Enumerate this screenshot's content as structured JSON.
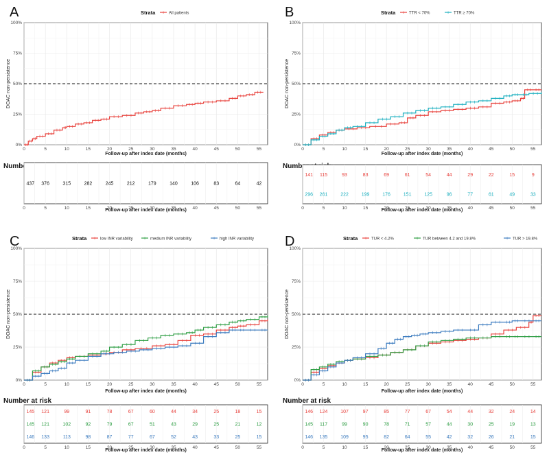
{
  "xlabel": "Follow-up after index date (months)",
  "ylabel": "DOAC non-persistence",
  "risk_title": "Number at risk",
  "legend_title": "Strata",
  "x_ticks": [
    "0",
    "5",
    "10",
    "15",
    "20",
    "25",
    "30",
    "35",
    "40",
    "45",
    "50",
    "55"
  ],
  "y_ticks": [
    "0%",
    "25%",
    "50%",
    "75%",
    "100%"
  ],
  "chart_data": [
    {
      "panel": "A",
      "type": "line",
      "title": "",
      "xlabel": "Follow-up after index date (months)",
      "ylabel": "DOAC non-persistence",
      "xlim": [
        0,
        57
      ],
      "ylim": [
        0,
        100
      ],
      "reference_line": 50,
      "series": [
        {
          "name": "All patients",
          "color": "#e8403b",
          "x": [
            0,
            1,
            2,
            3,
            5,
            7,
            9,
            10,
            12,
            14,
            16,
            18,
            20,
            23,
            26,
            28,
            30,
            32,
            35,
            38,
            40,
            42,
            45,
            48,
            50,
            52,
            54,
            56
          ],
          "y": [
            0,
            3,
            5,
            7,
            9,
            12,
            14,
            15,
            17,
            18,
            20,
            21,
            23,
            24,
            26,
            27,
            28,
            30,
            32,
            33,
            34,
            35,
            36,
            38,
            40,
            41,
            43,
            43
          ]
        }
      ],
      "risk_table": {
        "time_points": [
          0,
          5,
          10,
          15,
          20,
          25,
          30,
          35,
          40,
          45,
          50,
          55
        ],
        "rows": [
          {
            "label": "All patients",
            "color": "#111111",
            "values": [
              "437",
              "376",
              "315",
              "282",
              "245",
              "212",
              "179",
              "140",
              "106",
              "83",
              "64",
              "42"
            ]
          }
        ]
      }
    },
    {
      "panel": "B",
      "type": "line",
      "title": "",
      "xlabel": "Follow-up after index date (months)",
      "ylabel": "DOAC non-persistence",
      "xlim": [
        0,
        57
      ],
      "ylim": [
        0,
        100
      ],
      "reference_line": 50,
      "series": [
        {
          "name": "TTR < 70%",
          "color": "#e8403b",
          "x": [
            0,
            2,
            4,
            6,
            8,
            10,
            13,
            16,
            20,
            23,
            25,
            27,
            30,
            33,
            36,
            39,
            42,
            45,
            48,
            50,
            52,
            53,
            55,
            57
          ],
          "y": [
            0,
            5,
            8,
            10,
            12,
            13,
            14,
            15,
            17,
            18,
            22,
            24,
            27,
            28,
            29,
            30,
            31,
            34,
            35,
            36,
            38,
            45,
            45,
            45
          ]
        },
        {
          "name": "TTR ≥ 70%",
          "color": "#1aafbf",
          "x": [
            0,
            2,
            4,
            6,
            8,
            10,
            12,
            15,
            18,
            21,
            24,
            27,
            30,
            33,
            36,
            39,
            42,
            45,
            48,
            50,
            52,
            54,
            57
          ],
          "y": [
            0,
            4,
            7,
            9,
            12,
            14,
            15,
            18,
            21,
            23,
            26,
            28,
            30,
            31,
            33,
            35,
            36,
            38,
            40,
            41,
            41,
            42,
            43
          ]
        }
      ],
      "risk_table": {
        "time_points": [
          0,
          5,
          10,
          15,
          20,
          25,
          30,
          35,
          40,
          45,
          50,
          55
        ],
        "rows": [
          {
            "label": "TTR < 70%",
            "color": "#e8403b",
            "values": [
              "141",
              "115",
              "93",
              "83",
              "69",
              "61",
              "54",
              "44",
              "29",
              "22",
              "15",
              "9"
            ]
          },
          {
            "label": "TTR ≥ 70%",
            "color": "#1aafbf",
            "values": [
              "296",
              "261",
              "222",
              "199",
              "176",
              "151",
              "125",
              "96",
              "77",
              "61",
              "49",
              "33"
            ]
          }
        ]
      }
    },
    {
      "panel": "C",
      "type": "line",
      "title": "",
      "xlabel": "Follow-up after index date (months)",
      "ylabel": "DOAC non-persistence",
      "xlim": [
        0,
        57
      ],
      "ylim": [
        0,
        100
      ],
      "reference_line": 50,
      "series": [
        {
          "name": "low INR variability",
          "color": "#e8403b",
          "x": [
            0,
            2,
            4,
            6,
            8,
            10,
            12,
            15,
            18,
            20,
            23,
            26,
            30,
            33,
            36,
            39,
            42,
            45,
            48,
            50,
            52,
            55,
            57
          ],
          "y": [
            0,
            6,
            10,
            13,
            15,
            17,
            18,
            19,
            20,
            21,
            23,
            24,
            26,
            27,
            30,
            34,
            35,
            38,
            40,
            41,
            42,
            45,
            46
          ]
        },
        {
          "name": "medium INR variability",
          "color": "#2e9e44",
          "x": [
            0,
            2,
            4,
            6,
            8,
            10,
            12,
            15,
            18,
            20,
            23,
            26,
            29,
            32,
            35,
            38,
            40,
            42,
            45,
            48,
            50,
            52,
            55,
            57
          ],
          "y": [
            0,
            7,
            10,
            12,
            14,
            16,
            18,
            20,
            22,
            25,
            27,
            30,
            32,
            34,
            35,
            36,
            38,
            40,
            42,
            44,
            45,
            46,
            48,
            49
          ]
        },
        {
          "name": "high INR variability",
          "color": "#3b7bbf",
          "x": [
            0,
            2,
            4,
            6,
            8,
            10,
            12,
            15,
            18,
            21,
            24,
            27,
            30,
            33,
            36,
            39,
            42,
            45,
            48,
            50,
            52,
            55,
            57
          ],
          "y": [
            0,
            3,
            5,
            7,
            9,
            13,
            15,
            18,
            20,
            21,
            22,
            23,
            24,
            25,
            26,
            28,
            33,
            36,
            38,
            38,
            38,
            38,
            38
          ]
        }
      ],
      "risk_table": {
        "time_points": [
          0,
          5,
          10,
          15,
          20,
          25,
          30,
          35,
          40,
          45,
          50,
          55
        ],
        "rows": [
          {
            "label": "low INR variability",
            "color": "#e8403b",
            "values": [
              "145",
              "121",
              "99",
              "91",
              "78",
              "67",
              "60",
              "44",
              "34",
              "25",
              "18",
              "15"
            ]
          },
          {
            "label": "medium INR variability",
            "color": "#2e9e44",
            "values": [
              "145",
              "121",
              "102",
              "92",
              "79",
              "67",
              "51",
              "43",
              "29",
              "25",
              "21",
              "12"
            ]
          },
          {
            "label": "high INR variability",
            "color": "#3b7bbf",
            "values": [
              "146",
              "133",
              "113",
              "98",
              "87",
              "77",
              "67",
              "52",
              "43",
              "33",
              "25",
              "15"
            ]
          }
        ]
      }
    },
    {
      "panel": "D",
      "type": "line",
      "title": "",
      "xlabel": "Follow-up after index date (months)",
      "ylabel": "DOAC non-persistence",
      "xlim": [
        0,
        57
      ],
      "ylim": [
        0,
        100
      ],
      "reference_line": 50,
      "series": [
        {
          "name": "TUR < 4.2%",
          "color": "#e8403b",
          "x": [
            0,
            2,
            4,
            6,
            8,
            10,
            12,
            15,
            18,
            21,
            24,
            27,
            30,
            33,
            36,
            39,
            42,
            45,
            48,
            51,
            54,
            55,
            57
          ],
          "y": [
            0,
            6,
            9,
            11,
            13,
            15,
            16,
            17,
            19,
            21,
            23,
            26,
            28,
            29,
            30,
            31,
            32,
            35,
            38,
            40,
            44,
            49,
            49
          ]
        },
        {
          "name": "TUR between 4.2 and 19.8%",
          "color": "#2e9e44",
          "x": [
            0,
            2,
            4,
            6,
            8,
            10,
            12,
            15,
            18,
            21,
            24,
            27,
            30,
            33,
            36,
            39,
            42,
            45,
            48,
            50,
            52,
            55,
            57
          ],
          "y": [
            0,
            8,
            10,
            12,
            14,
            15,
            16,
            18,
            19,
            21,
            23,
            26,
            29,
            30,
            31,
            32,
            32,
            33,
            33,
            33,
            33,
            33,
            33
          ]
        },
        {
          "name": "TUR > 19.8%",
          "color": "#3b7bbf",
          "x": [
            0,
            2,
            4,
            6,
            8,
            10,
            12,
            15,
            18,
            20,
            22,
            24,
            26,
            28,
            30,
            33,
            36,
            39,
            42,
            45,
            48,
            50,
            52,
            55,
            57
          ],
          "y": [
            0,
            4,
            7,
            10,
            13,
            15,
            17,
            20,
            24,
            28,
            31,
            33,
            34,
            35,
            36,
            37,
            38,
            38,
            42,
            44,
            44,
            45,
            45,
            45,
            45
          ]
        }
      ],
      "risk_table": {
        "time_points": [
          0,
          5,
          10,
          15,
          20,
          25,
          30,
          35,
          40,
          45,
          50,
          55
        ],
        "rows": [
          {
            "label": "TUR < 4.2%",
            "color": "#e8403b",
            "values": [
              "146",
              "124",
              "107",
              "97",
              "85",
              "77",
              "67",
              "54",
              "44",
              "32",
              "24",
              "14"
            ]
          },
          {
            "label": "TUR between 4.2 and 19.8%",
            "color": "#2e9e44",
            "values": [
              "145",
              "117",
              "99",
              "90",
              "78",
              "71",
              "57",
              "44",
              "30",
              "25",
              "19",
              "13"
            ]
          },
          {
            "label": "TUR > 19.8%",
            "color": "#3b7bbf",
            "values": [
              "146",
              "135",
              "109",
              "95",
              "82",
              "64",
              "55",
              "42",
              "32",
              "26",
              "21",
              "15"
            ]
          }
        ]
      }
    }
  ]
}
